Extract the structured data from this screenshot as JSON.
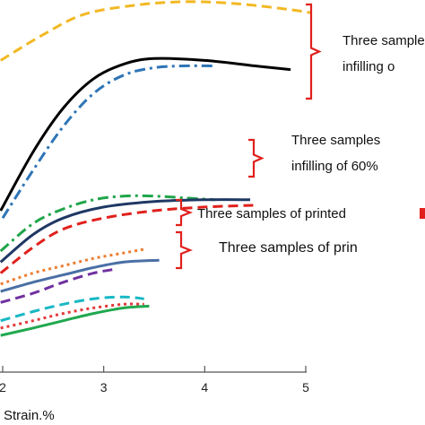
{
  "chart_data": {
    "type": "line",
    "xlabel": "Strain.%",
    "ylabel": "",
    "x_ticks": [
      "2",
      "3",
      "4",
      "5"
    ],
    "xlim": [
      1.98,
      5.1
    ],
    "ylim": [
      0,
      1
    ],
    "grid": false,
    "series": [
      {
        "color": "#f2b823",
        "style": "dashed",
        "x": [
          1.98,
          2.4,
          2.8,
          3.3,
          3.8,
          4.3,
          4.8,
          5.05
        ],
        "y": [
          0.85,
          0.92,
          0.975,
          1.0,
          1.01,
          1.005,
          0.99,
          0.98
        ]
      },
      {
        "color": "#000000",
        "style": "solid",
        "x": [
          1.98,
          2.3,
          2.6,
          2.9,
          3.2,
          3.5,
          4.0,
          4.5,
          4.85
        ],
        "y": [
          0.44,
          0.6,
          0.72,
          0.8,
          0.84,
          0.855,
          0.85,
          0.835,
          0.825
        ]
      },
      {
        "color": "#2e75b6",
        "style": "dash-dot",
        "x": [
          2.0,
          2.3,
          2.6,
          2.9,
          3.2,
          3.5,
          3.8,
          4.1
        ],
        "y": [
          0.42,
          0.55,
          0.67,
          0.76,
          0.81,
          0.83,
          0.835,
          0.835
        ]
      },
      {
        "color": "#1fa54a",
        "style": "dash-dot",
        "x": [
          1.98,
          2.3,
          2.6,
          2.9,
          3.2,
          3.5,
          3.8,
          4.1
        ],
        "y": [
          0.33,
          0.405,
          0.445,
          0.47,
          0.48,
          0.48,
          0.475,
          0.47
        ]
      },
      {
        "color": "#1f3864",
        "style": "solid",
        "x": [
          1.98,
          2.3,
          2.6,
          3.0,
          3.5,
          4.0,
          4.45
        ],
        "y": [
          0.3,
          0.375,
          0.42,
          0.45,
          0.465,
          0.47,
          0.47
        ]
      },
      {
        "color": "#e0201c",
        "style": "dashed",
        "x": [
          1.98,
          2.3,
          2.6,
          3.0,
          3.5,
          4.0,
          4.5
        ],
        "y": [
          0.27,
          0.34,
          0.39,
          0.42,
          0.44,
          0.45,
          0.455
        ]
      },
      {
        "color": "#ed7d31",
        "style": "dotted",
        "x": [
          1.98,
          2.3,
          2.6,
          2.9,
          3.2,
          3.4
        ],
        "y": [
          0.24,
          0.27,
          0.29,
          0.31,
          0.325,
          0.335
        ]
      },
      {
        "color": "#4a6fa5",
        "style": "solid",
        "x": [
          1.98,
          2.3,
          2.6,
          2.9,
          3.2,
          3.55
        ],
        "y": [
          0.22,
          0.245,
          0.265,
          0.285,
          0.3,
          0.305
        ]
      },
      {
        "color": "#7030a0",
        "style": "dashed",
        "x": [
          1.98,
          2.3,
          2.6,
          2.9,
          3.1
        ],
        "y": [
          0.19,
          0.215,
          0.245,
          0.27,
          0.28
        ]
      },
      {
        "color": "#17b8c5",
        "style": "dashed",
        "x": [
          1.98,
          2.3,
          2.6,
          2.9,
          3.2,
          3.4
        ],
        "y": [
          0.14,
          0.165,
          0.185,
          0.2,
          0.205,
          0.2
        ]
      },
      {
        "color": "#e23a3a",
        "style": "dotted",
        "x": [
          1.98,
          2.3,
          2.6,
          2.9,
          3.2,
          3.4
        ],
        "y": [
          0.12,
          0.14,
          0.16,
          0.175,
          0.185,
          0.185
        ]
      },
      {
        "color": "#20a84e",
        "style": "solid",
        "x": [
          1.98,
          2.3,
          2.6,
          2.9,
          3.2,
          3.45
        ],
        "y": [
          0.1,
          0.12,
          0.14,
          0.16,
          0.175,
          0.18
        ]
      }
    ],
    "annotations": [
      {
        "lines": [
          "Three samples",
          "infilling o"
        ]
      },
      {
        "lines": [
          "Three samples",
          "infilling of 60%"
        ]
      },
      {
        "lines": [
          "Three samples of printed"
        ]
      },
      {
        "lines": [
          "Three samples of prin"
        ]
      }
    ]
  },
  "colors": {
    "bracket": "#e0201c",
    "axis": "#555555"
  }
}
